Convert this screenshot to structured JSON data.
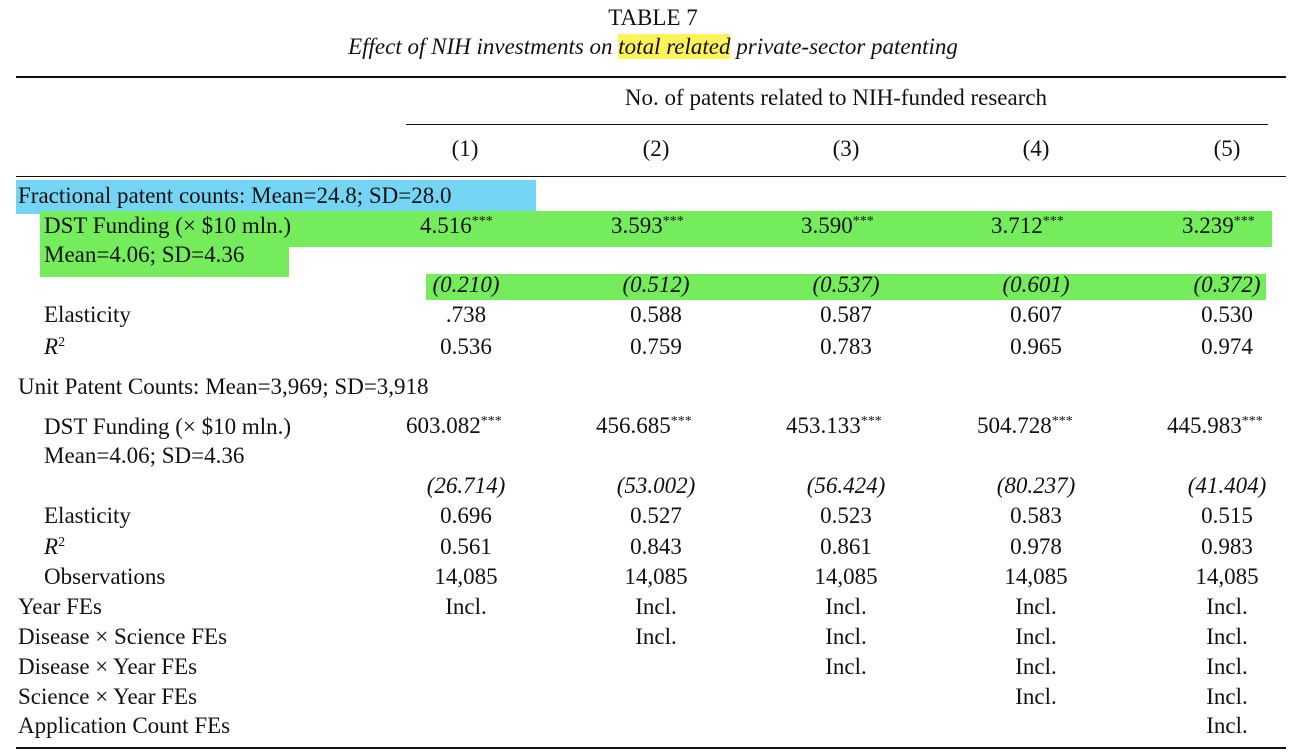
{
  "table": {
    "number": "TABLE 7",
    "caption_before": "Effect of NIH investments on ",
    "caption_highlight": "total related",
    "caption_after": " private-sector patenting",
    "header": "No. of patents related to NIH-funded research",
    "columns": [
      "(1)",
      "(2)",
      "(3)",
      "(4)",
      "(5)"
    ]
  },
  "panel_a": {
    "title": "Fractional patent counts: Mean=24.8; SD=28.0",
    "funding_label": "DST Funding (× $10 mln.)",
    "funding_sub": "Mean=4.06; SD=4.36",
    "coefs": [
      "4.516",
      "3.593",
      "3.590",
      "3.712",
      "3.239"
    ],
    "stars": "***",
    "se": [
      "(0.210)",
      "(0.512)",
      "(0.537)",
      "(0.601)",
      "(0.372)"
    ],
    "elasticity_label": "Elasticity",
    "elasticity": [
      ".738",
      "0.588",
      "0.587",
      "0.607",
      "0.530"
    ],
    "r2_label": "R",
    "r2_sup": "2",
    "r2": [
      "0.536",
      "0.759",
      "0.783",
      "0.965",
      "0.974"
    ]
  },
  "panel_b": {
    "title": "Unit Patent Counts: Mean=3,969; SD=3,918",
    "funding_label": "DST Funding (× $10 mln.)",
    "funding_sub": "Mean=4.06; SD=4.36",
    "coefs": [
      "603.082",
      "456.685",
      "453.133",
      "504.728",
      "445.983"
    ],
    "stars": "***",
    "se": [
      "(26.714)",
      "(53.002)",
      "(56.424)",
      "(80.237)",
      "(41.404)"
    ],
    "elasticity_label": "Elasticity",
    "elasticity": [
      "0.696",
      "0.527",
      "0.523",
      "0.583",
      "0.515"
    ],
    "r2_label": "R",
    "r2_sup": "2",
    "r2": [
      "0.561",
      "0.843",
      "0.861",
      "0.978",
      "0.983"
    ],
    "obs_label": "Observations",
    "obs": [
      "14,085",
      "14,085",
      "14,085",
      "14,085",
      "14,085"
    ]
  },
  "fixed_effects": [
    {
      "label": "Year FEs",
      "cells": [
        "Incl.",
        "Incl.",
        "Incl.",
        "Incl.",
        "Incl."
      ]
    },
    {
      "label": "Disease × Science FEs",
      "cells": [
        "",
        "Incl.",
        "Incl.",
        "Incl.",
        "Incl."
      ]
    },
    {
      "label": "Disease × Year FEs",
      "cells": [
        "",
        "",
        "Incl.",
        "Incl.",
        "Incl."
      ]
    },
    {
      "label": "Science × Year FEs",
      "cells": [
        "",
        "",
        "",
        "Incl.",
        "Incl."
      ]
    },
    {
      "label": "Application Count FEs",
      "cells": [
        "",
        "",
        "",
        "",
        "Incl."
      ]
    }
  ],
  "highlight_colors": {
    "yellow": "#fff35c",
    "blue": "#74d4f4",
    "green": "#74ec5c"
  }
}
